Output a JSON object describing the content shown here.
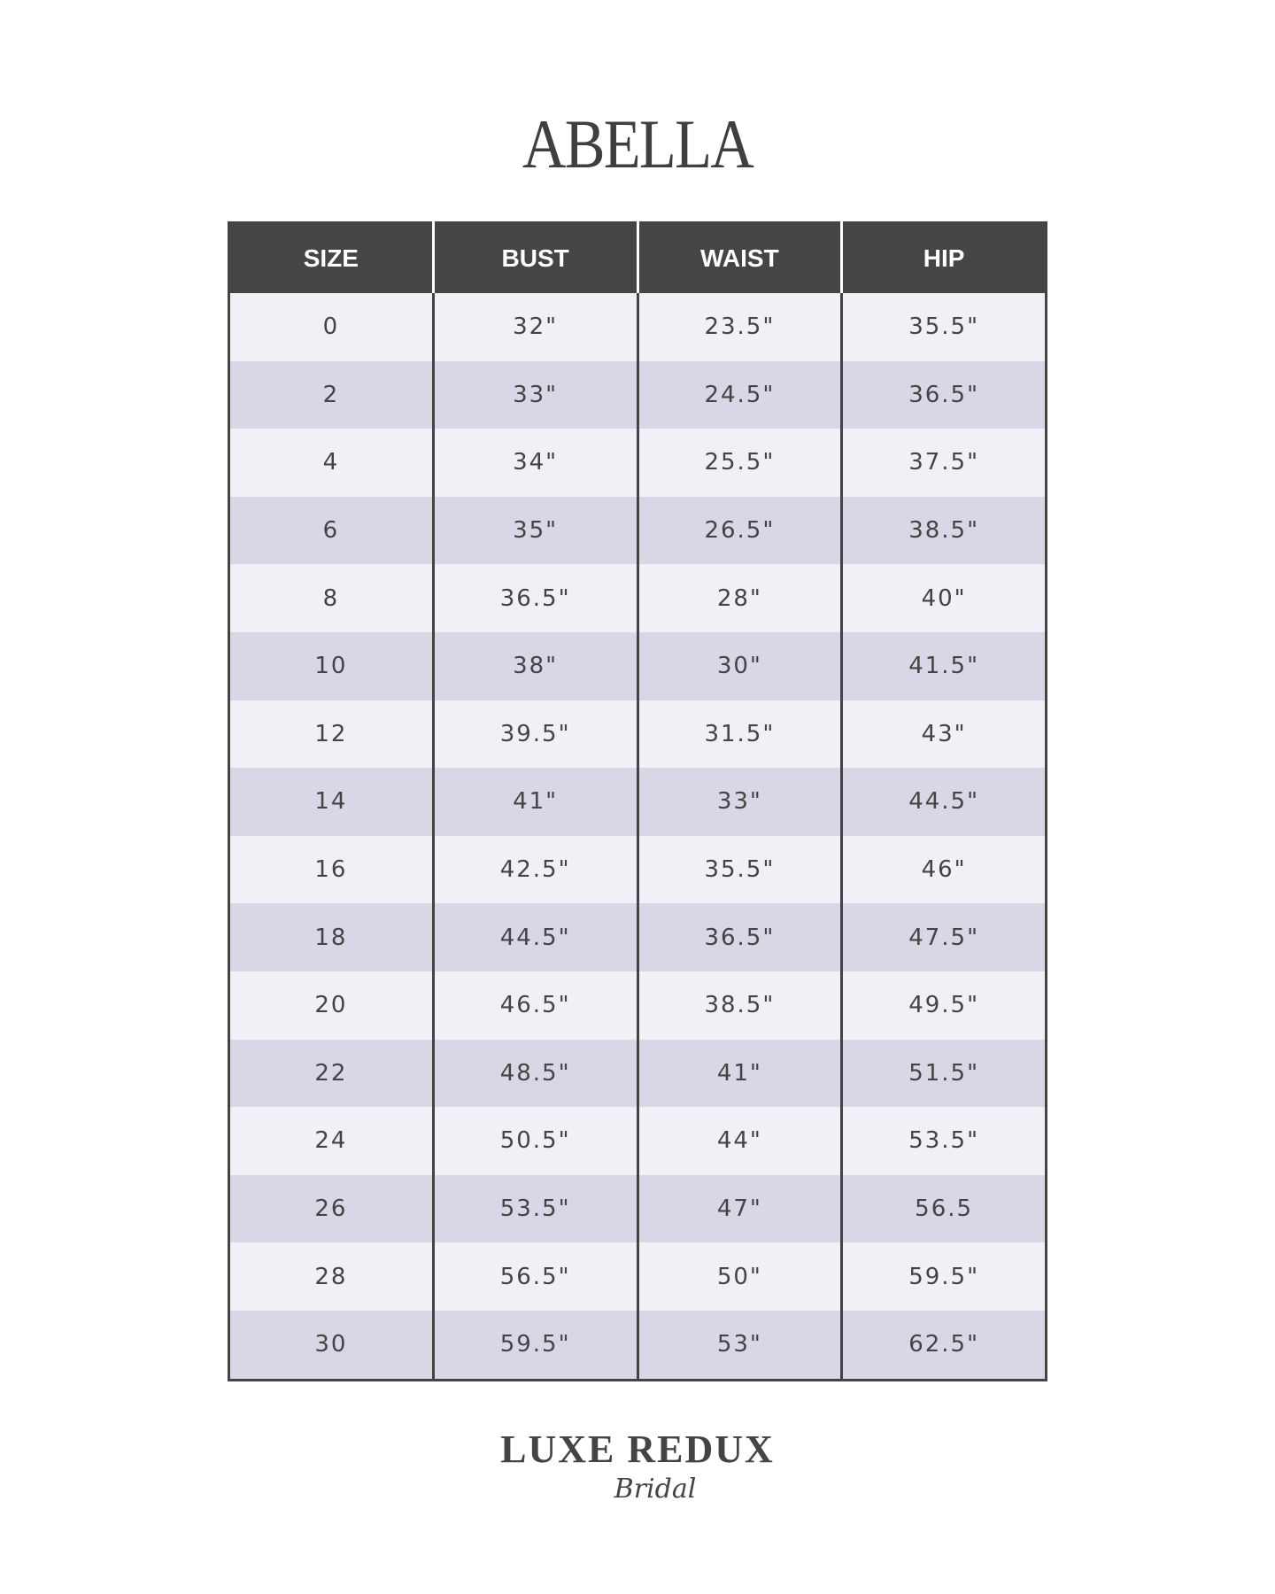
{
  "title": "ABELLA",
  "table": {
    "headers": [
      "SIZE",
      "BUST",
      "WAIST",
      "HIP"
    ],
    "rows": [
      [
        "0",
        "32\"",
        "23.5\"",
        "35.5\""
      ],
      [
        "2",
        "33\"",
        "24.5\"",
        "36.5\""
      ],
      [
        "4",
        "34\"",
        "25.5\"",
        "37.5\""
      ],
      [
        "6",
        "35\"",
        "26.5\"",
        "38.5\""
      ],
      [
        "8",
        "36.5\"",
        "28\"",
        "40\""
      ],
      [
        "10",
        "38\"",
        "30\"",
        "41.5\""
      ],
      [
        "12",
        "39.5\"",
        "31.5\"",
        "43\""
      ],
      [
        "14",
        "41\"",
        "33\"",
        "44.5\""
      ],
      [
        "16",
        "42.5\"",
        "35.5\"",
        "46\""
      ],
      [
        "18",
        "44.5\"",
        "36.5\"",
        "47.5\""
      ],
      [
        "20",
        "46.5\"",
        "38.5\"",
        "49.5\""
      ],
      [
        "22",
        "48.5\"",
        "41\"",
        "51.5\""
      ],
      [
        "24",
        "50.5\"",
        "44\"",
        "53.5\""
      ],
      [
        "26",
        "53.5\"",
        "47\"",
        "56.5"
      ],
      [
        "28",
        "56.5\"",
        "50\"",
        "59.5\""
      ],
      [
        "30",
        "59.5\"",
        "53\"",
        "62.5\""
      ]
    ]
  },
  "logo": {
    "main": "LUXE REDUX",
    "script": "Bridal"
  },
  "colors": {
    "header_bg": "#454545",
    "row_light": "#f1f0f6",
    "row_dark": "#d9d7e6",
    "text": "#444444"
  }
}
